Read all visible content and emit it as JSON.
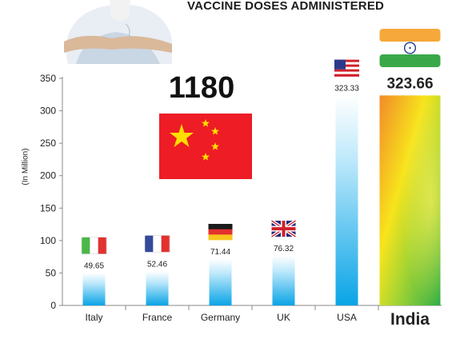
{
  "header": {
    "title": "VACCINE DOSES ADMINISTERED"
  },
  "china_callout": {
    "value": "1180",
    "flag": "china-flag"
  },
  "chart_data": {
    "type": "bar",
    "title": "VACCINE DOSES ADMINISTERED",
    "xlabel": "",
    "ylabel": "(In Million)",
    "ylim": [
      0,
      350
    ],
    "yticks": [
      0,
      50,
      100,
      150,
      200,
      250,
      300,
      350
    ],
    "categories": [
      "Italy",
      "France",
      "Germany",
      "UK",
      "USA",
      "India"
    ],
    "values": [
      49.65,
      52.46,
      71.44,
      76.32,
      323.33,
      323.66
    ],
    "value_labels": [
      "49.65",
      "52.46",
      "71.44",
      "76.32",
      "323.33",
      "323.66"
    ],
    "flags": [
      "italy-flag",
      "france-flag",
      "germany-flag",
      "uk-flag",
      "usa-flag",
      "india-flag"
    ],
    "highlight_category": "India",
    "grid": false,
    "legend": "none",
    "colors": {
      "bar_top": "#e6f7ff",
      "bar_bottom": "#0aa6e8",
      "india_orange": "#f28b28",
      "india_yellow": "#f7e41c",
      "india_green": "#35b346",
      "china_red": "#ee1c25",
      "china_star": "#ffde00"
    }
  }
}
